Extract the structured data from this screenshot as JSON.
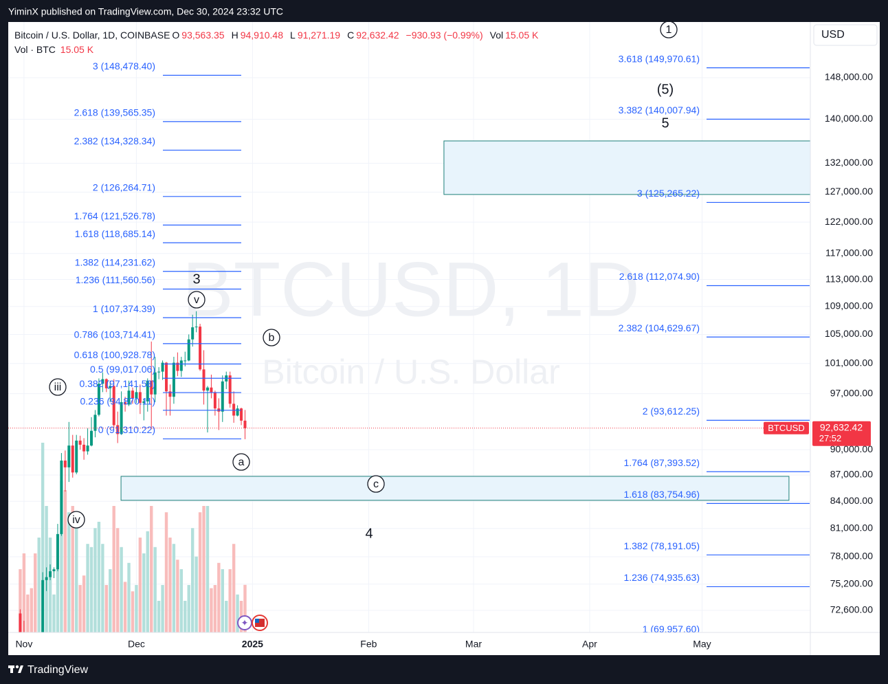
{
  "header": {
    "published": "YiminX published on TradingView.com, Dec 30, 2024 23:32 UTC"
  },
  "footer": {
    "brand": "TradingView"
  },
  "chart_data": {
    "type": "candlestick",
    "legend": {
      "symbol": "Bitcoin / U.S. Dollar, 1D, COINBASE",
      "fields": [
        {
          "key": "O",
          "value": "93,563.35"
        },
        {
          "key": "H",
          "value": "94,910.48"
        },
        {
          "key": "L",
          "value": "91,271.19"
        },
        {
          "key": "C",
          "value": "92,632.42"
        }
      ],
      "change": "−930.93 (−0.99%)",
      "vol_key": "Vol",
      "vol_value": "15.05 K",
      "volume_label": "Vol · BTC"
    },
    "watermark": {
      "line1": "BTCUSD, 1D",
      "line2": "Bitcoin / U.S. Dollar"
    },
    "currency": "USD",
    "price_badge": {
      "symbol": "BTCUSD",
      "countdown": "27:52"
    },
    "log_scale": true,
    "grid": true,
    "up_color": "#089981",
    "down_color": "#f23645",
    "volume_up_color": "#b2dfdb",
    "volume_down_color": "#f8bcbb",
    "fib_color": "#2962ff",
    "zone_fill": "#e8f4fc",
    "zone_border": "#1b7f79",
    "xlim": [
      -4.2,
      209.9
    ],
    "xticks": [
      {
        "value": 0,
        "label": "Nov"
      },
      {
        "value": 30,
        "label": "Dec"
      },
      {
        "value": 61,
        "label": "2025"
      },
      {
        "value": 92,
        "label": "Feb"
      },
      {
        "value": 120,
        "label": "Mar"
      },
      {
        "value": 151,
        "label": "Apr"
      },
      {
        "value": 181,
        "label": "May"
      }
    ],
    "ylim": [
      70489,
      159439
    ],
    "yticks": [
      {
        "value": 148000,
        "label": "148,000.00"
      },
      {
        "value": 140000,
        "label": "140,000.00"
      },
      {
        "value": 132000,
        "label": "132,000.00"
      },
      {
        "value": 127000,
        "label": "127,000.00"
      },
      {
        "value": 122000,
        "label": "122,000.00"
      },
      {
        "value": 117000,
        "label": "117,000.00"
      },
      {
        "value": 113000,
        "label": "113,000.00"
      },
      {
        "value": 109000,
        "label": "109,000.00"
      },
      {
        "value": 105000,
        "label": "105,000.00"
      },
      {
        "value": 101000,
        "label": "101,000.00"
      },
      {
        "value": 97000,
        "label": "97,000.00"
      },
      {
        "value": 90000,
        "label": "90,000.00"
      },
      {
        "value": 87000,
        "label": "87,000.00"
      },
      {
        "value": 84000,
        "label": "84,000.00"
      },
      {
        "value": 81000,
        "label": "81,000.00"
      },
      {
        "value": 78000,
        "label": "78,000.00"
      },
      {
        "value": 75200,
        "label": "75,200.00"
      },
      {
        "value": 72600,
        "label": "72,600.00"
      }
    ],
    "x": [
      -1,
      0,
      1,
      2,
      3,
      4,
      5,
      6,
      7,
      8,
      9,
      10,
      11,
      12,
      13,
      14,
      15,
      16,
      17,
      18,
      19,
      20,
      21,
      22,
      23,
      24,
      25,
      26,
      27,
      28,
      29,
      30,
      31,
      32,
      33,
      34,
      35,
      36,
      37,
      38,
      39,
      40,
      41,
      42,
      43,
      44,
      45,
      46,
      47,
      48,
      49,
      50,
      51,
      52,
      53,
      54,
      55,
      56,
      57,
      58,
      59
    ],
    "open": [
      72300,
      70200,
      69500,
      69300,
      68700,
      67800,
      69400,
      75600,
      75900,
      76500,
      76700,
      80400,
      88700,
      87900,
      90500,
      87300,
      91100,
      90600,
      89800,
      90500,
      92300,
      94300,
      98300,
      98900,
      97700,
      98000,
      93000,
      91900,
      95900,
      95600,
      97400,
      96400,
      97200,
      95800,
      96000,
      98700,
      96900,
      99800,
      99900,
      101100,
      97300,
      96600,
      101100,
      100000,
      101400,
      101400,
      104300,
      106000,
      106100,
      100200,
      97400,
      97800,
      97200,
      95100,
      94700,
      98600,
      99400,
      95700,
      94200,
      95100,
      93563.35
    ],
    "high": [
      72700,
      71600,
      70300,
      69500,
      69500,
      70500,
      76400,
      76900,
      77200,
      76900,
      81500,
      89600,
      89900,
      93400,
      91800,
      91800,
      91700,
      91400,
      92600,
      94000,
      94900,
      99000,
      99800,
      99000,
      98700,
      98900,
      94700,
      97300,
      96600,
      98700,
      97800,
      98000,
      98200,
      96300,
      99000,
      104000,
      101900,
      100500,
      101400,
      101200,
      98200,
      101900,
      102500,
      101900,
      102600,
      105000,
      107800,
      108300,
      106500,
      102800,
      98000,
      99500,
      97400,
      96400,
      99400,
      99900,
      99900,
      97300,
      95500,
      95200,
      94910.48
    ],
    "low": [
      69700,
      68800,
      69000,
      67500,
      66800,
      67400,
      69300,
      74500,
      75600,
      75800,
      76500,
      80200,
      85100,
      86200,
      86700,
      87100,
      90000,
      88800,
      89400,
      90400,
      91500,
      94100,
      97200,
      97200,
      95900,
      92600,
      90800,
      91800,
      94700,
      95400,
      95700,
      95800,
      94400,
      93600,
      94700,
      92500,
      95900,
      98900,
      98800,
      94200,
      94200,
      95700,
      99300,
      99200,
      100600,
      101300,
      103300,
      105300,
      100000,
      95600,
      92100,
      96400,
      94200,
      92400,
      93400,
      97600,
      95200,
      93300,
      94100,
      93000,
      91271.19
    ],
    "close": [
      70200,
      69500,
      69300,
      68700,
      67800,
      69400,
      75600,
      75900,
      76500,
      76700,
      80400,
      88700,
      87900,
      90500,
      87300,
      91100,
      90600,
      89800,
      90500,
      92300,
      94300,
      98300,
      98900,
      97700,
      98000,
      93000,
      91900,
      95900,
      95600,
      97400,
      96400,
      97200,
      95800,
      96000,
      98700,
      96900,
      99800,
      99900,
      101100,
      97300,
      96600,
      101100,
      100000,
      101400,
      101400,
      104300,
      106000,
      106100,
      100200,
      97400,
      97800,
      97200,
      95100,
      94700,
      98600,
      99400,
      95700,
      94200,
      95100,
      93563.35,
      92632.42
    ],
    "volume": [
      20,
      25,
      12,
      14,
      25,
      30,
      60,
      40,
      30,
      12,
      20,
      48,
      45,
      38,
      40,
      33,
      15,
      18,
      28,
      27,
      33,
      35,
      28,
      15,
      20,
      40,
      33,
      27,
      16,
      22,
      13,
      15,
      30,
      25,
      32,
      40,
      27,
      10,
      15,
      38,
      30,
      28,
      23,
      20,
      10,
      15,
      33,
      24,
      38,
      40,
      40,
      14,
      15,
      22,
      20,
      10,
      20,
      28,
      12,
      10,
      15.05
    ],
    "fib_left": [
      {
        "label": "3 (148,478.40)",
        "value": 148478.4
      },
      {
        "label": "2.618 (139,565.35)",
        "value": 139565.35
      },
      {
        "label": "2.382 (134,328.34)",
        "value": 134328.34
      },
      {
        "label": "2 (126,264.71)",
        "value": 126264.71
      },
      {
        "label": "1.764 (121,526.78)",
        "value": 121526.78
      },
      {
        "label": "1.618 (118,685.14)",
        "value": 118685.14
      },
      {
        "label": "1.382 (114,231.62)",
        "value": 114231.62
      },
      {
        "label": "1.236 (111,560.56)",
        "value": 111560.56
      },
      {
        "label": "1 (107,374.39)",
        "value": 107374.39
      },
      {
        "label": "0.786 (103,714.41)",
        "value": 103714.41
      },
      {
        "label": "0.618 (100,928.78)",
        "value": 100928.78
      },
      {
        "label": "0.5 (99,017.06)",
        "value": 99017.06
      },
      {
        "label": "0.382 (97,141.58)",
        "value": 97141.58
      },
      {
        "label": "0.236 (94,870.11)",
        "value": 94870.11
      },
      {
        "label": "0 (91,310.22)",
        "value": 91310.22
      }
    ],
    "fib_right": [
      {
        "label": "3.618 (149,970.61)",
        "value": 149970.61
      },
      {
        "label": "3.382 (140,007.94)",
        "value": 140007.94
      },
      {
        "label": "3 (125,265.22)",
        "value": 125265.22
      },
      {
        "label": "2.618 (112,074.90)",
        "value": 112074.9
      },
      {
        "label": "2.382 (104,629.67)",
        "value": 104629.67
      },
      {
        "label": "2 (93,612.25)",
        "value": 93612.25
      },
      {
        "label": "1.764 (87,393.52)",
        "value": 87393.52
      },
      {
        "label": "1.618 (83,754.96)",
        "value": 83754.96
      },
      {
        "label": "1.382 (78,191.05)",
        "value": 78191.05
      },
      {
        "label": "1.236 (74,935.63)",
        "value": 74935.63
      },
      {
        "label": "1 (69,957.60)",
        "value": 69957.6
      }
    ],
    "zones": [
      {
        "from": 112.1,
        "to": 209.9,
        "low": 126600,
        "high": 136000
      },
      {
        "from": 25.9,
        "to": 204.2,
        "low": 84110,
        "high": 86850
      }
    ],
    "wave_labels": [
      {
        "text": "1",
        "circled": true
      },
      {
        "text": "(5)",
        "circled": false
      },
      {
        "text": "5",
        "circled": false
      },
      {
        "text": "3",
        "circled": false
      },
      {
        "text": "v",
        "circled": true
      },
      {
        "text": "b",
        "circled": true
      },
      {
        "text": "iii",
        "circled": true
      },
      {
        "text": "a",
        "circled": true
      },
      {
        "text": "c",
        "circled": true
      },
      {
        "text": "4",
        "circled": false
      },
      {
        "text": "iv",
        "circled": true
      }
    ]
  }
}
